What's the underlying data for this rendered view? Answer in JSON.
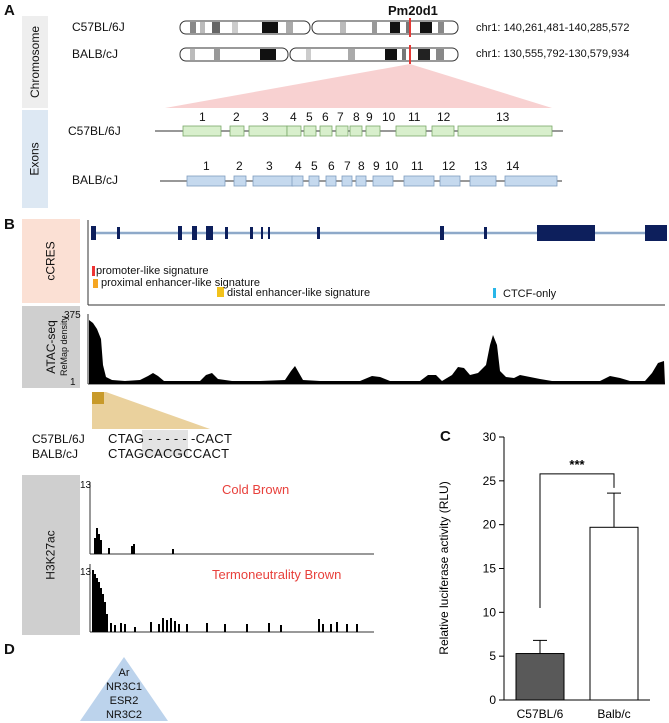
{
  "panels": {
    "A": "A",
    "B": "B",
    "C": "C",
    "D": "D"
  },
  "panelA": {
    "side_top": "Chromosome",
    "side_bottom": "Exons",
    "gene": "Pm20d1",
    "strain1": "C57BL/6J",
    "strain2": "BALB/cJ",
    "coord1": "chr1: 140,261,481-140,285,572",
    "coord2": "chr1: 130,555,792-130,579,934",
    "exons1": [
      "1",
      "2",
      "3",
      "4",
      "5",
      "6",
      "7",
      "8",
      "9",
      "10",
      "11",
      "12",
      "13"
    ],
    "exons2": [
      "1",
      "2",
      "3",
      "4",
      "5",
      "6",
      "7",
      "8",
      "9",
      "10",
      "11",
      "12",
      "13",
      "14"
    ]
  },
  "panelB": {
    "side_ccres": "cCRES",
    "side_atac": "ATAC-seq",
    "side_h3k": "H3K27ac",
    "legend": [
      {
        "label": "promoter-like signature",
        "color": "#ee3333"
      },
      {
        "label": "proximal enhancer-like signature",
        "color": "#f5a623"
      },
      {
        "label": "distal enhancer-like signature",
        "color": "#f2c21b"
      },
      {
        "label": "CTCF-only",
        "color": "#29b6e8"
      }
    ],
    "atac_axis_label": "ReMap density",
    "atac_max": "375",
    "atac_min": "1",
    "seq_strain1": "C57BL/6J",
    "seq_strain2": "BALB/cJ",
    "seq1": "CTAG - - - - - -CACT",
    "seq2_pre": "CTAG",
    "seq2_ins": "CACGC",
    "seq2_post": "CACT",
    "track1_max": "13",
    "track1_title": "Cold Brown",
    "track2_max": "13",
    "track2_title": "Termoneutrality Brown"
  },
  "chart_data": {
    "type": "bar",
    "categories": [
      "C57BL/6",
      "Balb/c"
    ],
    "values": [
      5.3,
      19.7
    ],
    "errors": [
      1.5,
      3.9
    ],
    "bar_colors": [
      "#595959",
      "#ffffff"
    ],
    "ylabel": "Relative luciferase activity (RLU)",
    "ylim": [
      0,
      30
    ],
    "yticks": [
      "0",
      "5",
      "10",
      "15",
      "20",
      "25",
      "30"
    ],
    "significance": "***"
  },
  "panelD": {
    "tf_list": [
      "Ar",
      "NR3C1",
      "ESR2",
      "NR3C2"
    ]
  }
}
